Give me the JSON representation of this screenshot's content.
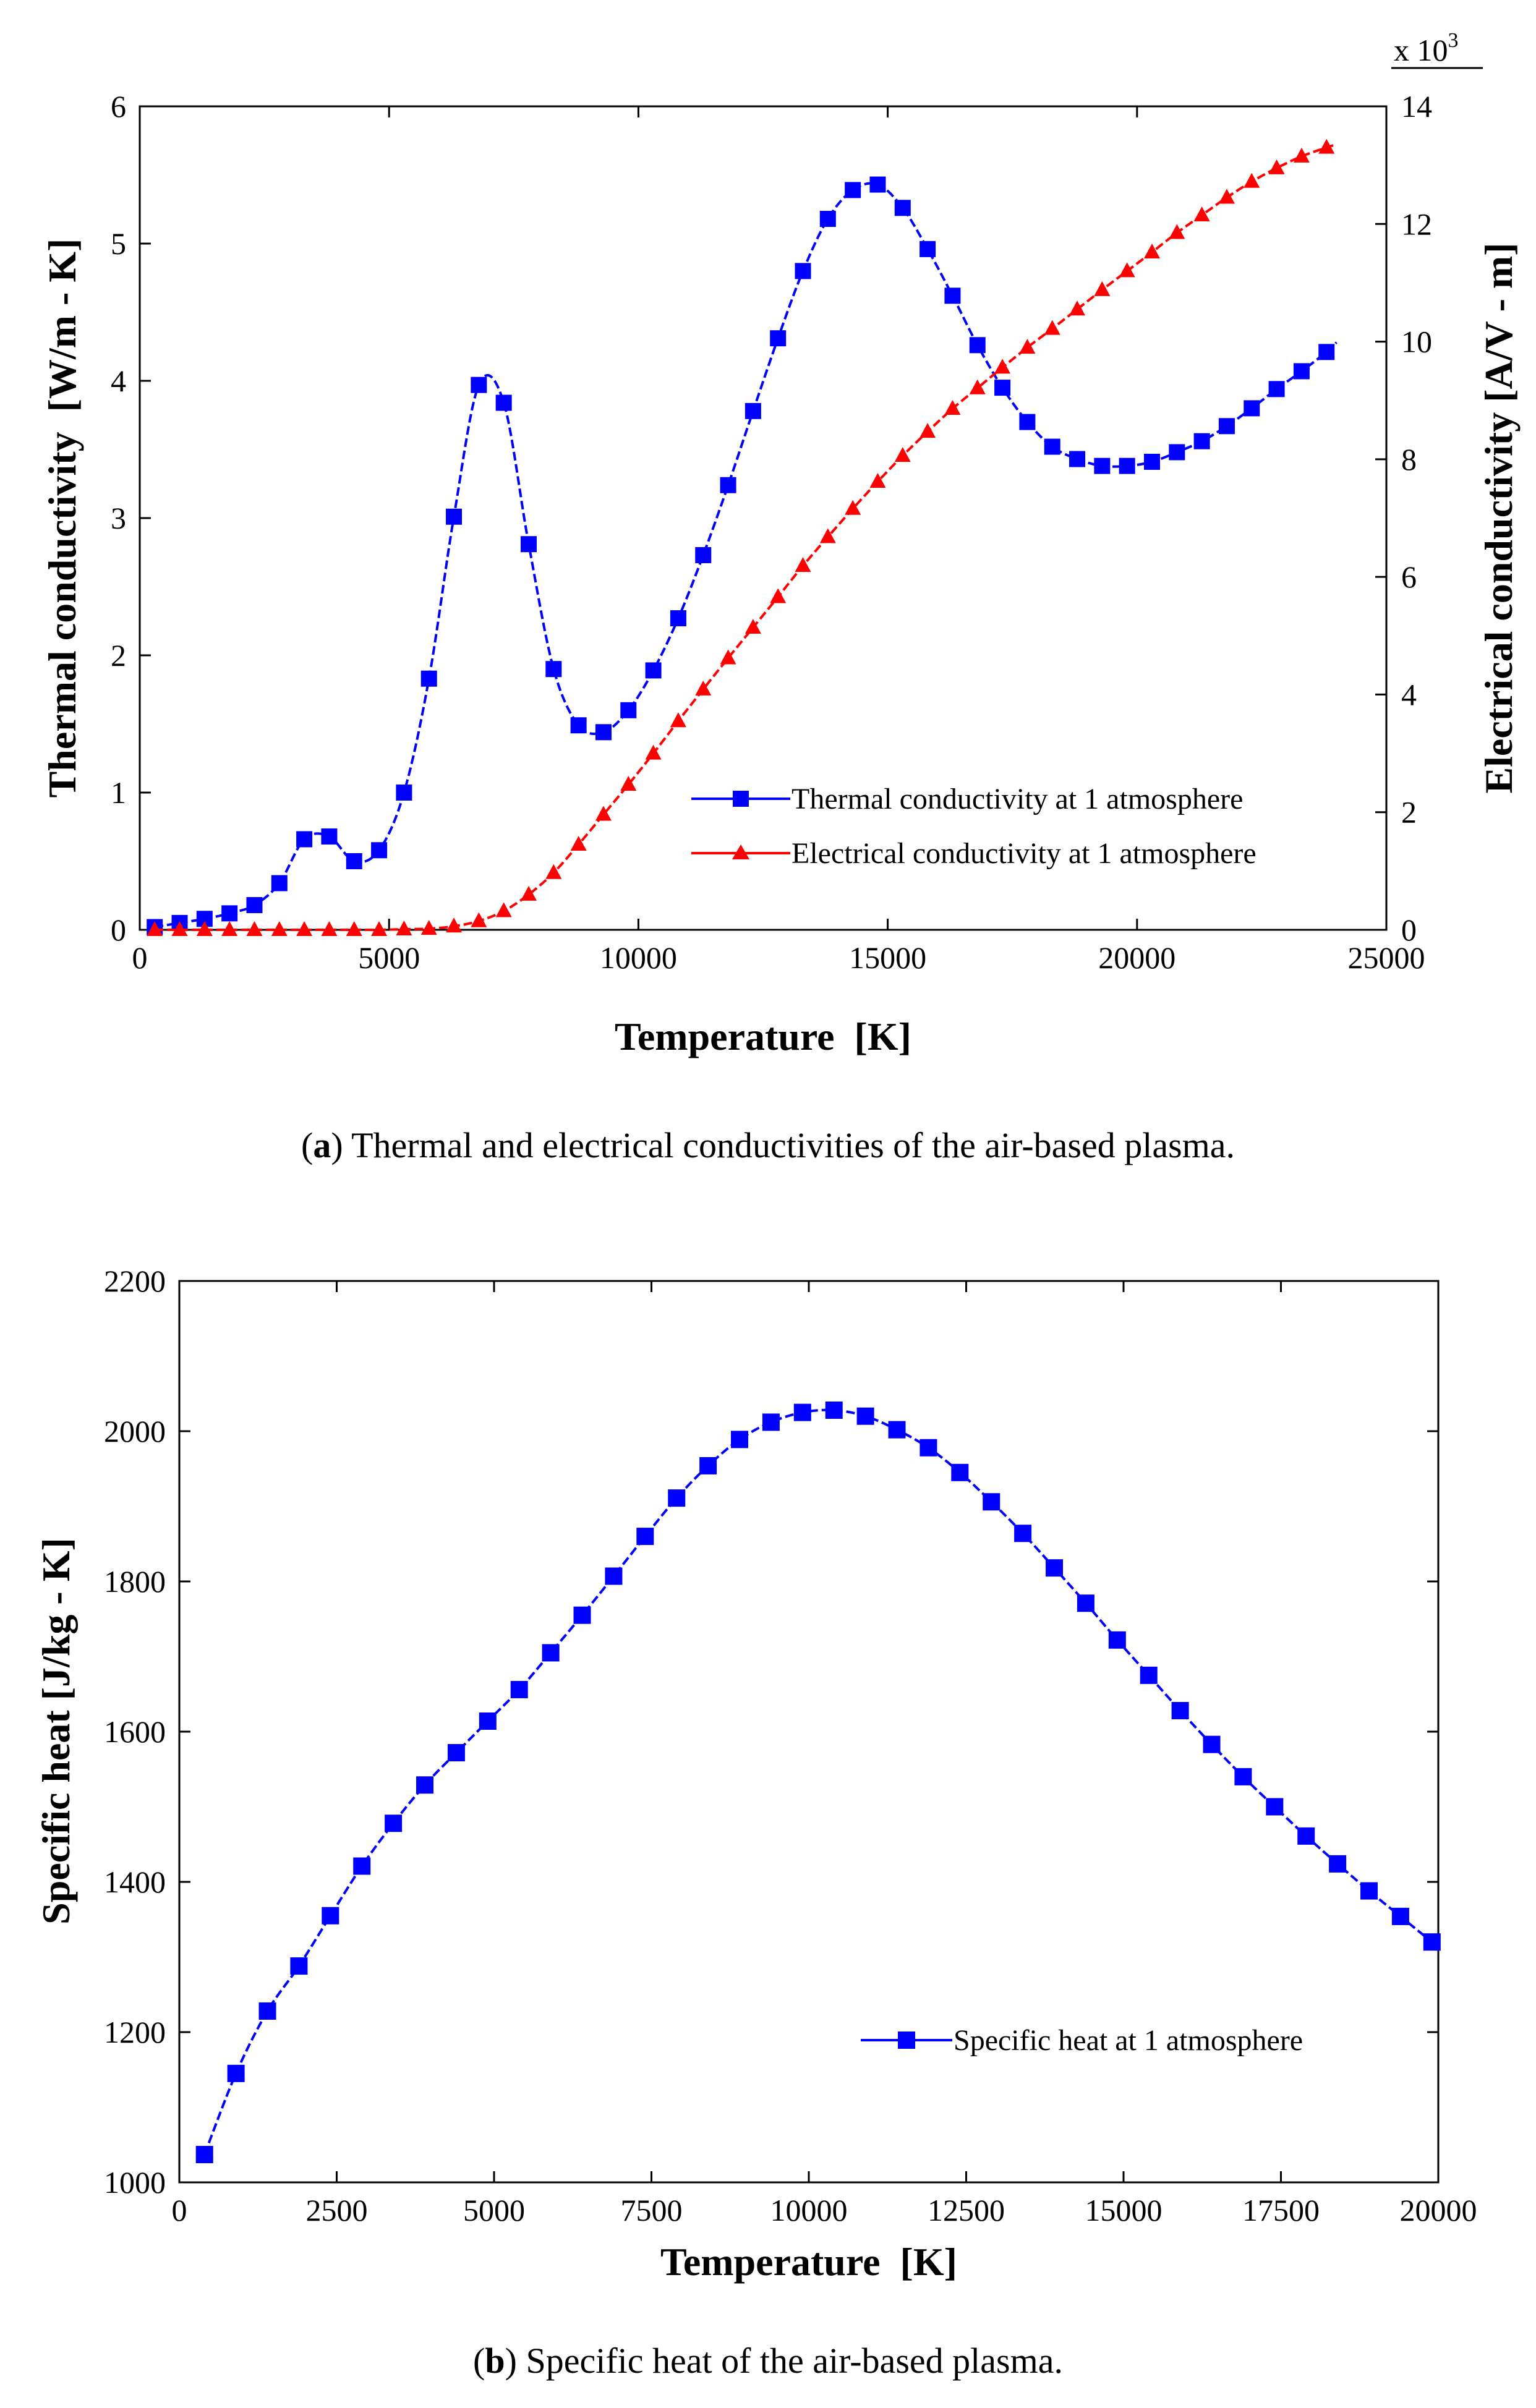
{
  "chart_data": [
    {
      "id": "a",
      "type": "line",
      "xlabel": "Temperature  [K]",
      "ylabel": "Thermal conductivity  [W/m - K]",
      "y2label": "Electrical conductivity [A/V - m]",
      "y2_multiplier_label": {
        "base": "x 10",
        "exp": "3"
      },
      "xlim": [
        0,
        25000
      ],
      "ylim": [
        0,
        6
      ],
      "y2lim": [
        0,
        14
      ],
      "xticks": [
        0,
        5000,
        10000,
        15000,
        20000,
        25000
      ],
      "yticks": [
        0,
        1,
        2,
        3,
        4,
        5,
        6
      ],
      "y2ticks": [
        0,
        2,
        4,
        6,
        8,
        10,
        12,
        14
      ],
      "legend_position": "lower-right",
      "series": [
        {
          "name": "Thermal conductivity at 1 atmosphere",
          "axis": "left",
          "color": "#0000ff",
          "marker": "square",
          "x": [
            300,
            800,
            1300,
            1800,
            2300,
            2800,
            3300,
            3800,
            4300,
            4800,
            5300,
            5800,
            6300,
            6800,
            7300,
            7800,
            8300,
            8800,
            9300,
            9800,
            10300,
            10800,
            11300,
            11800,
            12300,
            12800,
            13300,
            13800,
            14300,
            14800,
            15300,
            15800,
            16300,
            16800,
            17300,
            17800,
            18300,
            18800,
            19300,
            19800,
            20300,
            20800,
            21300,
            21800,
            22300,
            22800,
            23300,
            23800
          ],
          "y": [
            0.02,
            0.05,
            0.08,
            0.12,
            0.18,
            0.34,
            0.66,
            0.68,
            0.5,
            0.58,
            1.0,
            1.83,
            3.01,
            3.97,
            3.84,
            2.81,
            1.9,
            1.49,
            1.44,
            1.6,
            1.89,
            2.27,
            2.73,
            3.24,
            3.78,
            4.31,
            4.8,
            5.18,
            5.39,
            5.43,
            5.26,
            4.96,
            4.62,
            4.26,
            3.95,
            3.7,
            3.52,
            3.43,
            3.38,
            3.38,
            3.41,
            3.48,
            3.56,
            3.67,
            3.8,
            3.94,
            4.07,
            4.21
          ]
        },
        {
          "name": "Electrical conductivity at 1 atmosphere",
          "axis": "right",
          "color": "#ff0000",
          "marker": "triangle",
          "x": [
            300,
            800,
            1300,
            1800,
            2300,
            2800,
            3300,
            3800,
            4300,
            4800,
            5300,
            5800,
            6300,
            6800,
            7300,
            7800,
            8300,
            8800,
            9300,
            9800,
            10300,
            10800,
            11300,
            11800,
            12300,
            12800,
            13300,
            13800,
            14300,
            14800,
            15300,
            15800,
            16300,
            16800,
            17300,
            17800,
            18300,
            18800,
            19300,
            19800,
            20300,
            20800,
            21300,
            21800,
            22300,
            22800,
            23300,
            23800
          ],
          "y": [
            0,
            0,
            0,
            0,
            0,
            0,
            0,
            0,
            0,
            0,
            0.01,
            0.02,
            0.06,
            0.15,
            0.32,
            0.6,
            0.97,
            1.45,
            1.96,
            2.47,
            3.0,
            3.55,
            4.09,
            4.62,
            5.14,
            5.66,
            6.19,
            6.68,
            7.16,
            7.62,
            8.06,
            8.47,
            8.86,
            9.21,
            9.56,
            9.9,
            10.22,
            10.55,
            10.88,
            11.2,
            11.52,
            11.85,
            12.15,
            12.45,
            12.72,
            12.95,
            13.15,
            13.3
          ]
        }
      ],
      "caption": {
        "label": "a",
        "text": " Thermal and electrical conductivities of the air-based plasma."
      }
    },
    {
      "id": "b",
      "type": "line",
      "xlabel": "Temperature  [K]",
      "ylabel": "Specific heat [J/kg - K]",
      "xlim": [
        0,
        20000
      ],
      "ylim": [
        1000,
        2200
      ],
      "xticks": [
        0,
        2500,
        5000,
        7500,
        10000,
        12500,
        15000,
        17500,
        20000
      ],
      "yticks": [
        1000,
        1200,
        1400,
        1600,
        1800,
        2000,
        2200
      ],
      "legend_position": "lower-right",
      "series": [
        {
          "name": "Specific heat at 1 atmosphere",
          "color": "#0000ff",
          "marker": "square",
          "x": [
            400,
            900,
            1400,
            1900,
            2400,
            2900,
            3400,
            3900,
            4400,
            4900,
            5400,
            5900,
            6400,
            6900,
            7400,
            7900,
            8400,
            8900,
            9400,
            9900,
            10400,
            10900,
            11400,
            11900,
            12400,
            12900,
            13400,
            13900,
            14400,
            14900,
            15400,
            15900,
            16400,
            16900,
            17400,
            17900,
            18400,
            18900,
            19400,
            19900
          ],
          "y": [
            1037,
            1145,
            1228,
            1288,
            1355,
            1421,
            1478,
            1529,
            1572,
            1614,
            1656,
            1705,
            1755,
            1807,
            1860,
            1911,
            1954,
            1989,
            2012,
            2025,
            2028,
            2020,
            2002,
            1978,
            1945,
            1906,
            1864,
            1818,
            1771,
            1722,
            1675,
            1628,
            1583,
            1540,
            1500,
            1461,
            1424,
            1388,
            1354,
            1320
          ]
        }
      ],
      "caption": {
        "label": "b",
        "text": " Specific heat of the air-based plasma."
      }
    }
  ]
}
